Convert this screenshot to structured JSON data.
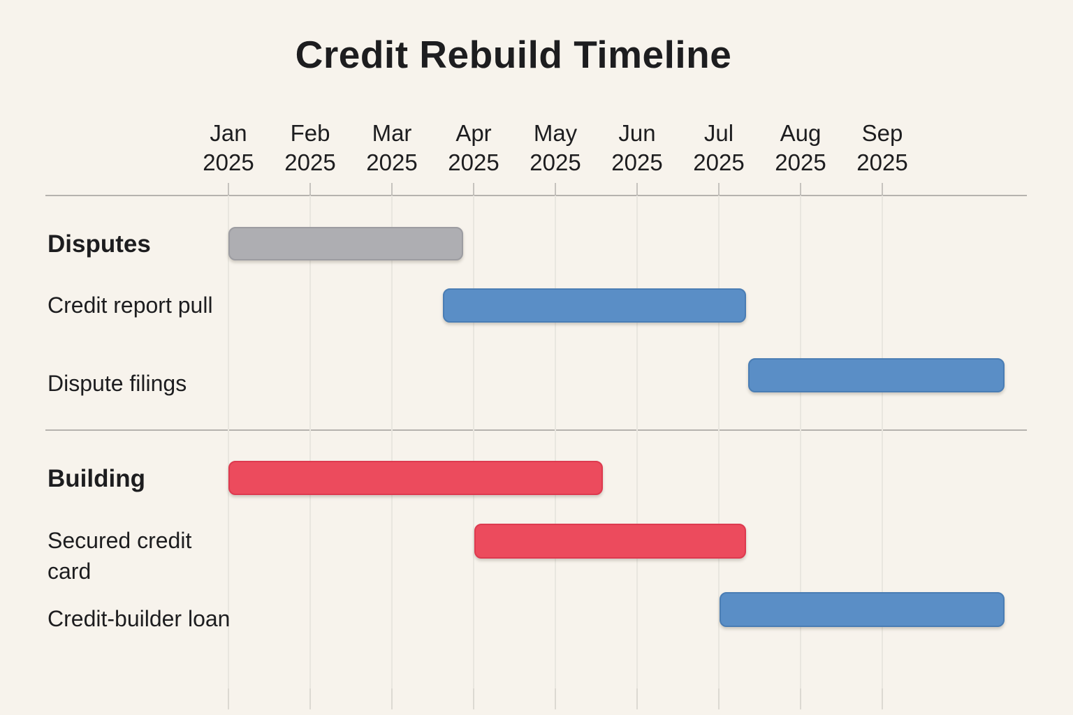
{
  "title": "Credit Rebuild Timeline",
  "chart_data": {
    "type": "bar",
    "subtype": "gantt",
    "title": "Credit Rebuild Timeline",
    "xlabel": "",
    "ylabel": "",
    "grid": "vertical-month-gridlines",
    "legend": "none",
    "months": [
      {
        "month": "Jan",
        "year": "2025"
      },
      {
        "month": "Feb",
        "year": "2025"
      },
      {
        "month": "Mar",
        "year": "2025"
      },
      {
        "month": "Apr",
        "year": "2025"
      },
      {
        "month": "May",
        "year": "2025"
      },
      {
        "month": "Jun",
        "year": "2025"
      },
      {
        "month": "Jul",
        "year": "2025"
      },
      {
        "month": "Aug",
        "year": "2025"
      },
      {
        "month": "Sep",
        "year": "2025"
      }
    ],
    "x_range_months_from_jan2025": [
      0,
      9.77
    ],
    "tasks": [
      {
        "id": "disputes",
        "label": "Disputes",
        "kind": "section",
        "color": "gray",
        "start_month": 0.0,
        "end_month": 2.87,
        "start": "2025-01-01",
        "end": "2025-03-27"
      },
      {
        "id": "credit-report-pull",
        "label": "Credit report pull",
        "kind": "task",
        "color": "blue",
        "start_month": 2.62,
        "end_month": 6.33,
        "start": "2025-03-19",
        "end": "2025-07-11"
      },
      {
        "id": "dispute-filings",
        "label": "Dispute filings",
        "kind": "task",
        "color": "blue",
        "start_month": 6.36,
        "end_month": 9.5,
        "start": "2025-07-12",
        "end": "2025-10-16"
      },
      {
        "id": "building",
        "label": "Building",
        "kind": "section",
        "color": "red",
        "start_month": 0.0,
        "end_month": 4.58,
        "start": "2025-01-01",
        "end": "2025-05-18"
      },
      {
        "id": "secured-credit-card",
        "label": "Secured credit card",
        "kind": "task",
        "color": "red",
        "start_month": 3.01,
        "end_month": 6.33,
        "start": "2025-04-01",
        "end": "2025-07-11"
      },
      {
        "id": "credit-builder-loan",
        "label": "Credit-builder loan",
        "kind": "task",
        "color": "blue",
        "start_month": 6.01,
        "end_month": 9.5,
        "start": "2025-07-01",
        "end": "2025-10-16"
      }
    ],
    "sections": [
      {
        "name": "Disputes",
        "children": [
          "Credit report pull",
          "Dispute filings"
        ]
      },
      {
        "name": "Building",
        "children": [
          "Secured credit card",
          "Credit-builder loan"
        ]
      }
    ],
    "colors": {
      "blue": "#5a8ec6",
      "blue_border": "#4a7db4",
      "red": "#ec4b5d",
      "red_border": "#dd3a4f",
      "gray": "#aeaeb2",
      "gray_border": "#9c9ca1",
      "background": "#f7f3ec",
      "grid": "#e9e6df",
      "axis": "#b5b2ae",
      "text": "#1d1d1f"
    }
  }
}
